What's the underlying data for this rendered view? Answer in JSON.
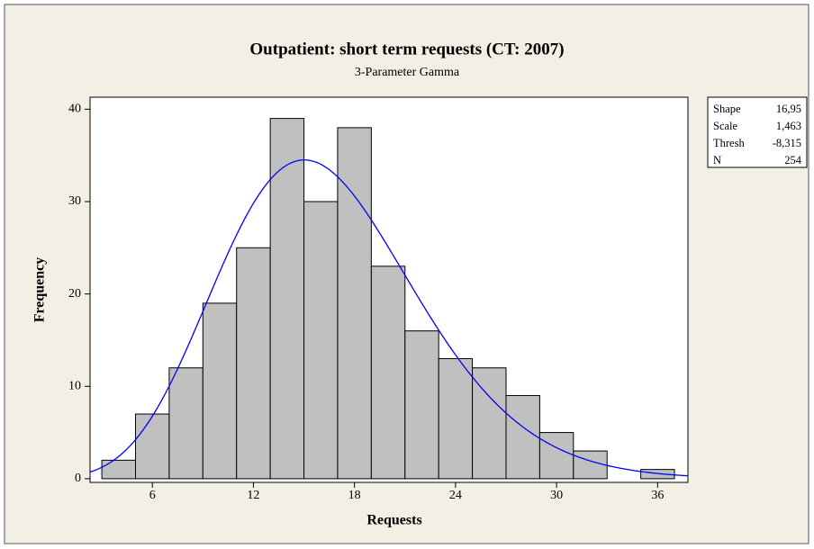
{
  "chart_data": {
    "type": "histogram",
    "title": "Outpatient: short term requests (CT: 2007)",
    "subtitle": "3-Parameter Gamma",
    "x_label": "Requests",
    "y_label": "Frequency",
    "bins": [
      3,
      5,
      7,
      9,
      11,
      13,
      15,
      17,
      19,
      21,
      23,
      25,
      27,
      29,
      31,
      33,
      35,
      37
    ],
    "values": [
      2,
      7,
      12,
      19,
      25,
      39,
      30,
      38,
      23,
      16,
      13,
      12,
      9,
      5,
      3,
      0,
      1
    ],
    "color": "#c0c0c0",
    "curve_color": "#0000ff",
    "xlim": [
      2.3,
      37.8
    ],
    "xticks": [
      6,
      12,
      18,
      24,
      30,
      36
    ],
    "ylim": [
      -0.4,
      41.3
    ],
    "yticks": [
      0,
      10,
      20,
      30,
      40
    ],
    "stats_labels": [
      "Shape",
      "Scale",
      "Thresh",
      "N"
    ],
    "stats_values": [
      16.95,
      1.463,
      -8.315,
      254
    ],
    "stats_value_labels": [
      "16,95",
      "1,463",
      "-8,315",
      "254"
    ]
  }
}
